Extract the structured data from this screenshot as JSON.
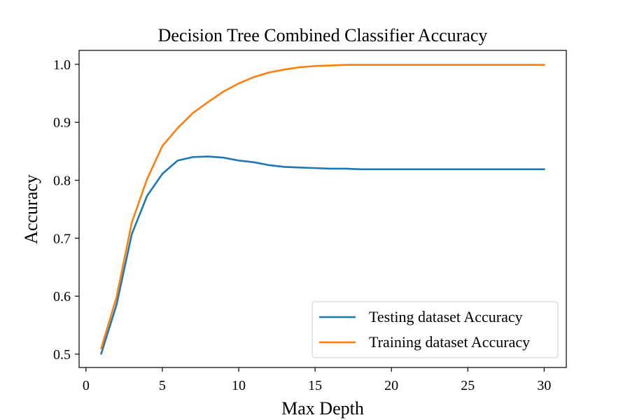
{
  "chart_data": {
    "type": "line",
    "title": "Decision Tree Combined Classifier Accuracy",
    "xlabel": "Max Depth",
    "ylabel": "Accuracy",
    "xlim": [
      -0.45,
      31.45
    ],
    "ylim": [
      0.477,
      1.024
    ],
    "xticks": [
      0,
      5,
      10,
      15,
      20,
      25,
      30
    ],
    "yticks": [
      0.5,
      0.6,
      0.7,
      0.8,
      0.9,
      1.0
    ],
    "xtick_labels": [
      "0",
      "5",
      "10",
      "15",
      "20",
      "25",
      "30"
    ],
    "ytick_labels": [
      "0.5",
      "0.6",
      "0.7",
      "0.8",
      "0.9",
      "1.0"
    ],
    "legend_position": "lower-right",
    "grid": false,
    "x": [
      1,
      2,
      3,
      4,
      5,
      6,
      7,
      8,
      9,
      10,
      11,
      12,
      13,
      14,
      15,
      16,
      17,
      18,
      19,
      20,
      21,
      22,
      23,
      24,
      25,
      26,
      27,
      28,
      29,
      30
    ],
    "series": [
      {
        "name": "Testing dataset Accuracy",
        "color": "#1f77b4",
        "values": [
          0.501,
          0.585,
          0.707,
          0.773,
          0.811,
          0.834,
          0.84,
          0.841,
          0.839,
          0.834,
          0.831,
          0.826,
          0.823,
          0.822,
          0.821,
          0.82,
          0.82,
          0.819,
          0.819,
          0.819,
          0.819,
          0.819,
          0.819,
          0.819,
          0.819,
          0.819,
          0.819,
          0.819,
          0.819,
          0.819
        ]
      },
      {
        "name": "Training dataset Accuracy",
        "color": "#ff7f0e",
        "values": [
          0.51,
          0.598,
          0.727,
          0.802,
          0.859,
          0.89,
          0.916,
          0.935,
          0.953,
          0.967,
          0.978,
          0.986,
          0.991,
          0.995,
          0.997,
          0.998,
          0.999,
          0.999,
          0.999,
          0.999,
          0.999,
          0.999,
          0.999,
          0.999,
          0.999,
          0.999,
          0.999,
          0.999,
          0.999,
          0.999
        ]
      }
    ]
  }
}
